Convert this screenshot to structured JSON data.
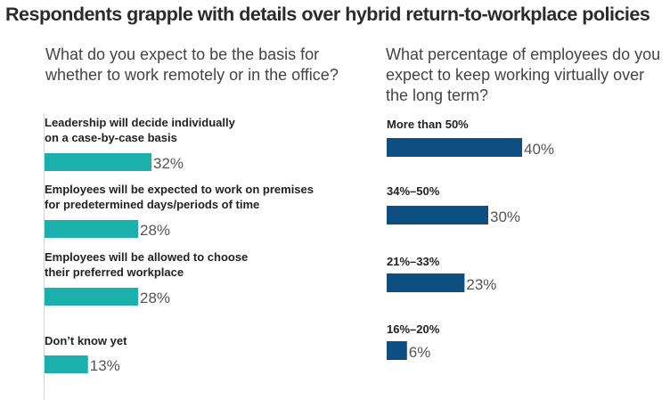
{
  "title": "Respondents grapple with details over hybrid return-to-workplace policies",
  "colors": {
    "left_bar": "#1cb0ad",
    "right_bar": "#0e4f82"
  },
  "chart_data": [
    {
      "type": "bar",
      "orientation": "horizontal",
      "title": "What do you expect to be the basis for whether to work remotely or in the office?",
      "unit": "%",
      "xlim": [
        0,
        100
      ],
      "categories": [
        [
          "Leadership will decide individually",
          "on a case-by-case basis"
        ],
        [
          "Employees will be expected to work on premises",
          "for predetermined days/periods of time"
        ],
        [
          "Employees will be allowed to choose",
          "their preferred workplace"
        ],
        [
          "Don’t know yet"
        ]
      ],
      "values": [
        32,
        28,
        28,
        13
      ],
      "labels": [
        "32%",
        "28%",
        "28%",
        "13%"
      ]
    },
    {
      "type": "bar",
      "orientation": "horizontal",
      "title": "What percentage of employees do you expect to keep working virtually over the long term?",
      "unit": "%",
      "xlim": [
        0,
        100
      ],
      "categories": [
        [
          "More than 50%"
        ],
        [
          "34%–50%"
        ],
        [
          "21%–33%"
        ],
        [
          "16%–20%"
        ]
      ],
      "values": [
        40,
        30,
        23,
        6
      ],
      "labels": [
        "40%",
        "30%",
        "23%",
        "6%"
      ]
    }
  ]
}
